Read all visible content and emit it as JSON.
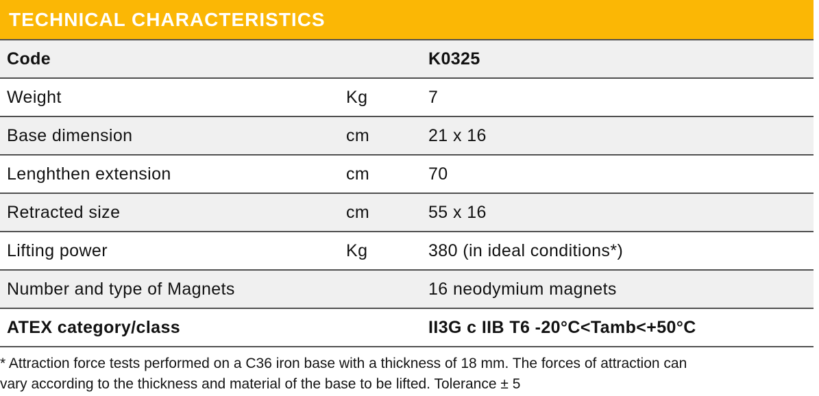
{
  "header": {
    "title": "TECHNICAL CHARACTERISTICS"
  },
  "table": {
    "rows": [
      {
        "label": "Code",
        "unit": "",
        "value": "K0325",
        "bold": true
      },
      {
        "label": "Weight",
        "unit": "Kg",
        "value": "7",
        "bold": false
      },
      {
        "label": "Base dimension",
        "unit": "cm",
        "value": "21 x 16",
        "bold": false
      },
      {
        "label": "Lenghthen extension",
        "unit": "cm",
        "value": "70",
        "bold": false
      },
      {
        "label": "Retracted size",
        "unit": "cm",
        "value": "55 x 16",
        "bold": false
      },
      {
        "label": "Lifting power",
        "unit": "Kg",
        "value": "380 (in ideal conditions*)",
        "bold": false
      },
      {
        "label": "Number and type of Magnets",
        "unit": "",
        "value": "16 neodymium magnets",
        "bold": false
      },
      {
        "label": "ATEX category/class",
        "unit": "",
        "value": "II3G c IIB T6 -20°C<Tamb<+50°C",
        "bold": true
      }
    ]
  },
  "footnote": {
    "lines": [
      "* Attraction force tests performed on a C36 iron base with a thickness of 18 mm. The forces of attraction can",
      "vary according to the thickness and material of the base to be lifted. Tolerance ± 5"
    ]
  },
  "colors": {
    "header_bg": "#FBB705",
    "header_text": "#FFFFFF",
    "row_alt_bg": "#F0F0F0",
    "row_bg": "#FFFFFF",
    "separator": "#4F4F4F",
    "text": "#111111"
  }
}
